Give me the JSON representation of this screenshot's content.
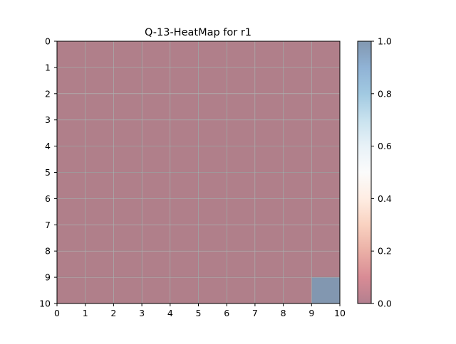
{
  "chart_data": {
    "type": "heatmap",
    "title": "Q-13-HeatMap for r1",
    "xlabel": "",
    "ylabel": "",
    "x_ticks": [
      "0",
      "1",
      "2",
      "3",
      "4",
      "5",
      "6",
      "7",
      "8",
      "9",
      "10"
    ],
    "y_ticks": [
      "0",
      "1",
      "2",
      "3",
      "4",
      "5",
      "6",
      "7",
      "8",
      "9",
      "10"
    ],
    "xlim": [
      0,
      10
    ],
    "ylim": [
      10,
      0
    ],
    "grid": true,
    "colormap": "RdBu",
    "colormap_alpha": 0.5,
    "colorbar": {
      "range": [
        0.0,
        1.0
      ],
      "ticks": [
        "0.0",
        "0.2",
        "0.4",
        "0.6",
        "0.8",
        "1.0"
      ]
    },
    "values": [
      [
        0,
        0,
        0,
        0,
        0,
        0,
        0,
        0,
        0,
        0
      ],
      [
        0,
        0,
        0,
        0,
        0,
        0,
        0,
        0,
        0,
        0
      ],
      [
        0,
        0,
        0,
        0,
        0,
        0,
        0,
        0,
        0,
        0
      ],
      [
        0,
        0,
        0,
        0,
        0,
        0,
        0,
        0,
        0,
        0
      ],
      [
        0,
        0,
        0,
        0,
        0,
        0,
        0,
        0,
        0,
        0
      ],
      [
        0,
        0,
        0,
        0,
        0,
        0,
        0,
        0,
        0,
        0
      ],
      [
        0,
        0,
        0,
        0,
        0,
        0,
        0,
        0,
        0,
        0
      ],
      [
        0,
        0,
        0,
        0,
        0,
        0,
        0,
        0,
        0,
        0
      ],
      [
        0,
        0,
        0,
        0,
        0,
        0,
        0,
        0,
        0,
        0
      ],
      [
        0,
        0,
        0,
        0,
        0,
        0,
        0,
        0,
        0,
        1
      ]
    ],
    "colors": {
      "low": "#b07f8a",
      "high": "#8297b0",
      "grid": "#b0b0b0",
      "cell_border": "#5a4048"
    }
  }
}
